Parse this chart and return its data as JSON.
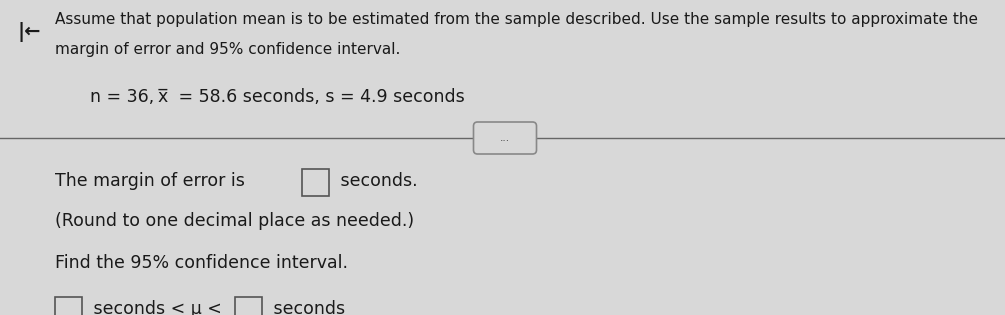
{
  "bg_color": "#d8d8d8",
  "text_color": "#1a1a1a",
  "line1": "Assume that population mean is to be estimated from the sample described. Use the sample results to approximate the",
  "line2": "margin of error and 95% confidence interval.",
  "sample_line_normal": "n = 36, ",
  "sample_x": "x",
  "sample_line_after_x": " = 58.6 seconds, s = 4.9 seconds",
  "margin_line1": "The margin of error is",
  "margin_line2": " seconds.",
  "margin_line3": "(Round to one decimal place as needed.)",
  "ci_line": "Find the 95% confidence interval.",
  "ci_bottom_pre": " seconds < μ <",
  "ci_bottom_post": " seconds",
  "arrow_label": "...",
  "font_size_top": 11.0,
  "font_size_sample": 12.5,
  "font_size_body": 12.5
}
